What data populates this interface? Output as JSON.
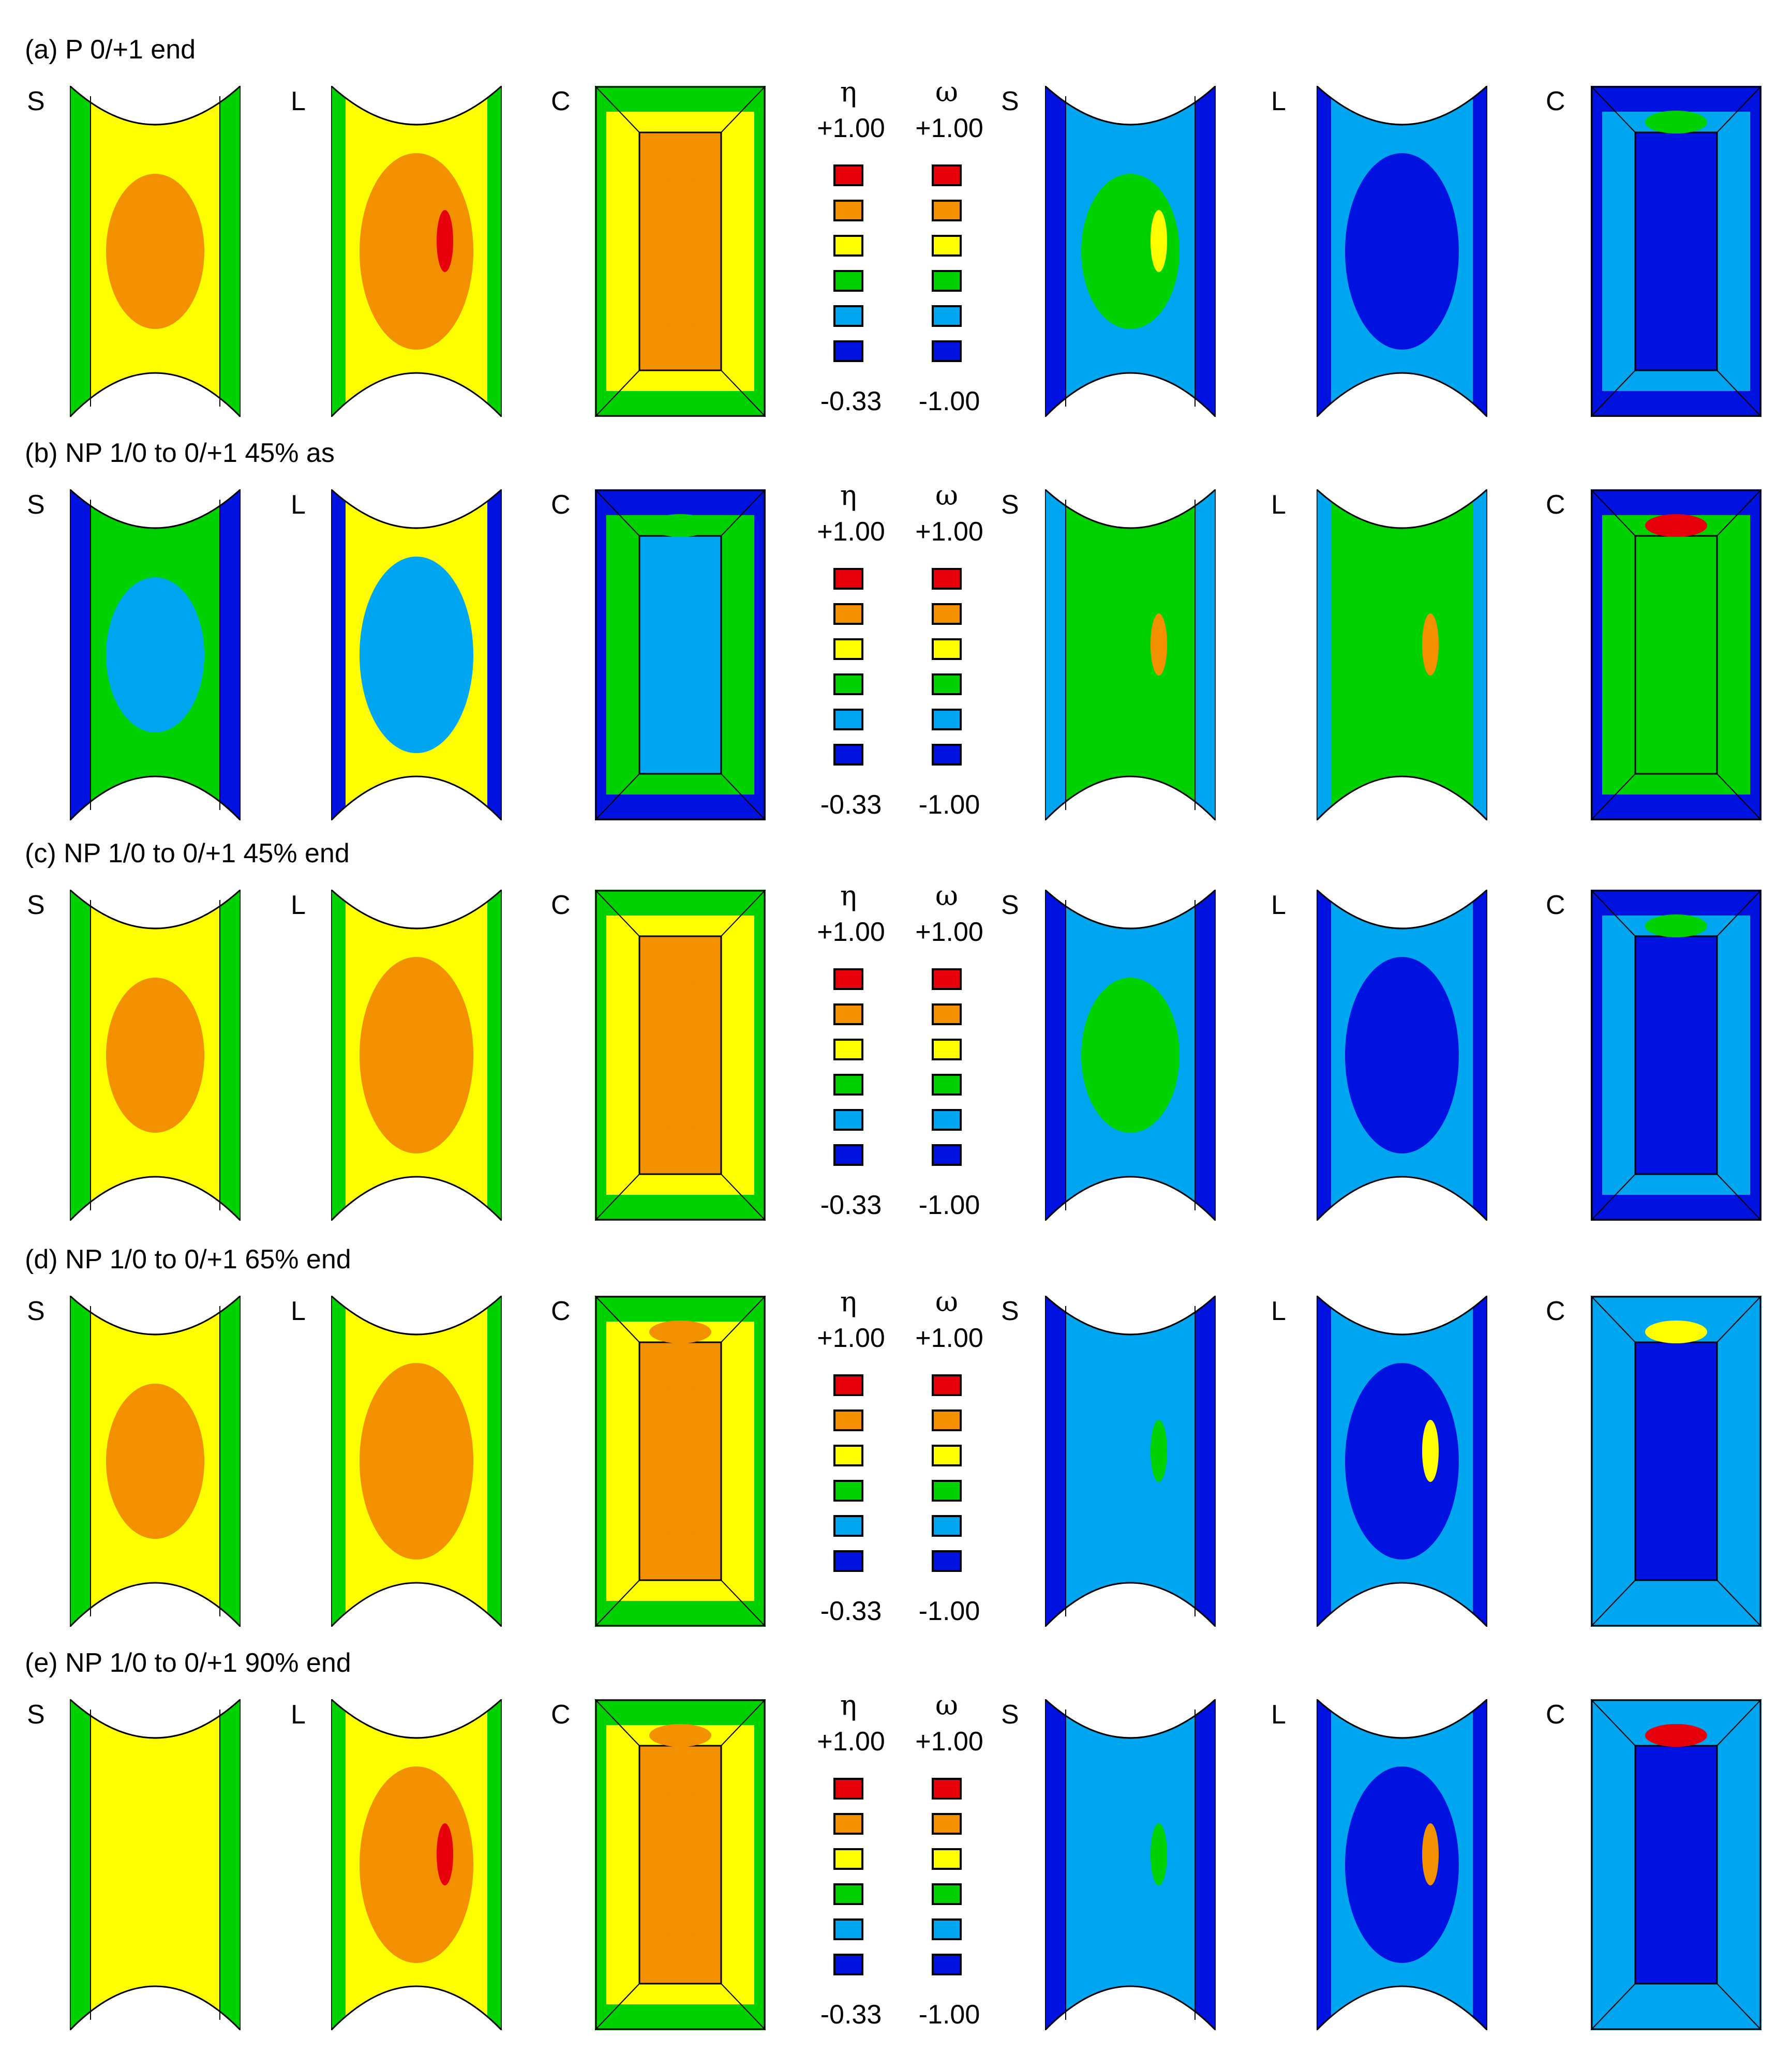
{
  "rows": [
    {
      "title": "(a) P 0/+1 end"
    },
    {
      "title": "(b) NP 1/0 to 0/+1 45% as"
    },
    {
      "title": "(c) NP 1/0 to 0/+1 45% end"
    },
    {
      "title": "(d) NP 1/0 to 0/+1 65% end"
    },
    {
      "title": "(e) NP 1/0 to 0/+1 90% end"
    }
  ],
  "panel_labels": {
    "s": "S",
    "l": "L",
    "c": "C"
  },
  "legend": {
    "eta": {
      "symbol": "η",
      "max": "+1.00",
      "min": "-0.33"
    },
    "omega": {
      "symbol": "ω",
      "max": "+1.00",
      "min": "-1.00"
    },
    "colors": [
      "#e8000b",
      "#f39000",
      "#ffff00",
      "#00d200",
      "#00a6f0",
      "#0012e0"
    ]
  }
}
